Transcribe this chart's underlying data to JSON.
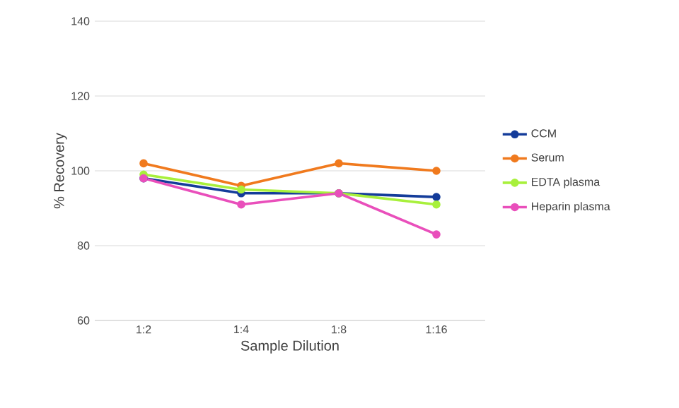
{
  "chart_data": {
    "type": "line",
    "xlabel": "Sample Dilution",
    "ylabel": "% Recovery",
    "categories": [
      "1:2",
      "1:4",
      "1:8",
      "1:16"
    ],
    "series": [
      {
        "name": "CCM",
        "color": "#143c9a",
        "values": [
          98,
          94,
          94,
          93
        ]
      },
      {
        "name": "Serum",
        "color": "#f07a1e",
        "values": [
          102,
          96,
          102,
          100
        ]
      },
      {
        "name": "EDTA plasma",
        "color": "#a8f03c",
        "values": [
          99,
          95,
          94,
          91
        ]
      },
      {
        "name": "Heparin plasma",
        "color": "#e94fbb",
        "values": [
          98,
          91,
          94,
          83
        ]
      }
    ],
    "ylim": [
      60,
      140
    ],
    "yticks": [
      60,
      80,
      100,
      120,
      140
    ],
    "grid": "y",
    "legend": "right",
    "marker": "circle",
    "line_style": "solid"
  }
}
